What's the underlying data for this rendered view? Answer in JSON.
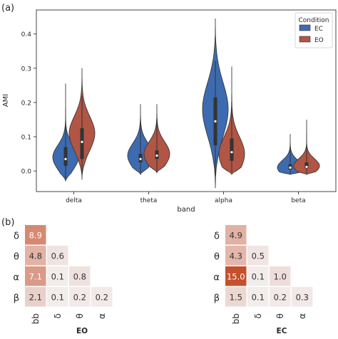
{
  "colors": {
    "EC": "#3d6bb0",
    "EO": "#b15545",
    "heat_max": "#c4502e",
    "heat_min": "#f3eeee",
    "text_dark": "#262626"
  },
  "chart_data": [
    {
      "panel_label": "(a)",
      "type": "violin",
      "xlabel": "band",
      "ylabel": "AMI",
      "categories": [
        "delta",
        "theta",
        "alpha",
        "beta"
      ],
      "ylim": [
        -0.06,
        0.47
      ],
      "yticks": [
        0.0,
        0.1,
        0.2,
        0.3,
        0.4
      ],
      "ytick_labels": [
        "0.0",
        "0.1",
        "0.2",
        "0.3",
        "0.4"
      ],
      "grid": false,
      "legend": {
        "title": "Condition",
        "placement": "top-right",
        "entries": [
          "EC",
          "EO"
        ]
      },
      "series": [
        {
          "name": "EC",
          "violins": [
            {
              "min": -0.03,
              "q1": 0.015,
              "median": 0.035,
              "q3": 0.07,
              "max": 0.255,
              "mode": 0.04,
              "spread": 0.05
            },
            {
              "min": -0.01,
              "q1": 0.025,
              "median": 0.035,
              "q3": 0.05,
              "max": 0.195,
              "mode": 0.045,
              "spread": 0.05
            },
            {
              "min": -0.05,
              "q1": 0.075,
              "median": 0.145,
              "q3": 0.215,
              "max": 0.445,
              "mode": 0.18,
              "spread": 0.11
            },
            {
              "min": -0.01,
              "q1": 0.005,
              "median": 0.01,
              "q3": 0.02,
              "max": 0.108,
              "mode": 0.01,
              "spread": 0.03
            }
          ]
        },
        {
          "name": "EO",
          "violins": [
            {
              "min": -0.025,
              "q1": 0.035,
              "median": 0.085,
              "q3": 0.125,
              "max": 0.3,
              "mode": 0.11,
              "spread": 0.07
            },
            {
              "min": -0.005,
              "q1": 0.035,
              "median": 0.045,
              "q3": 0.06,
              "max": 0.195,
              "mode": 0.05,
              "spread": 0.05
            },
            {
              "min": -0.01,
              "q1": 0.03,
              "median": 0.055,
              "q3": 0.095,
              "max": 0.305,
              "mode": 0.05,
              "spread": 0.07
            },
            {
              "min": -0.01,
              "q1": 0.008,
              "median": 0.012,
              "q3": 0.025,
              "max": 0.15,
              "mode": 0.015,
              "spread": 0.03
            }
          ]
        }
      ]
    },
    {
      "panel_label": "(b)",
      "type": "heatmap",
      "title": "EO",
      "row_labels": [
        "δ",
        "θ",
        "α",
        "β"
      ],
      "col_labels": [
        "bb",
        "δ",
        "θ",
        "α"
      ],
      "values": [
        [
          8.9,
          null,
          null,
          null
        ],
        [
          4.8,
          0.6,
          null,
          null
        ],
        [
          7.1,
          0.1,
          0.8,
          null
        ],
        [
          2.1,
          0.1,
          0.2,
          0.2
        ]
      ],
      "value_labels": [
        [
          "8.9",
          null,
          null,
          null
        ],
        [
          "4.8",
          "0.6",
          null,
          null
        ],
        [
          "7.1",
          "0.1",
          "0.8",
          null
        ],
        [
          "2.1",
          "0.1",
          "0.2",
          "0.2"
        ]
      ],
      "vmax": 15.0
    },
    {
      "type": "heatmap",
      "title": "EC",
      "row_labels": [
        "δ",
        "θ",
        "α",
        "β"
      ],
      "col_labels": [
        "bb",
        "δ",
        "θ",
        "α"
      ],
      "values": [
        [
          4.9,
          null,
          null,
          null
        ],
        [
          4.3,
          0.5,
          null,
          null
        ],
        [
          15.0,
          0.1,
          1.0,
          null
        ],
        [
          1.5,
          0.1,
          0.2,
          0.3
        ]
      ],
      "value_labels": [
        [
          "4.9",
          null,
          null,
          null
        ],
        [
          "4.3",
          "0.5",
          null,
          null
        ],
        [
          "15.0",
          "0.1",
          "1.0",
          null
        ],
        [
          "1.5",
          "0.1",
          "0.2",
          "0.3"
        ]
      ],
      "vmax": 15.0
    }
  ]
}
